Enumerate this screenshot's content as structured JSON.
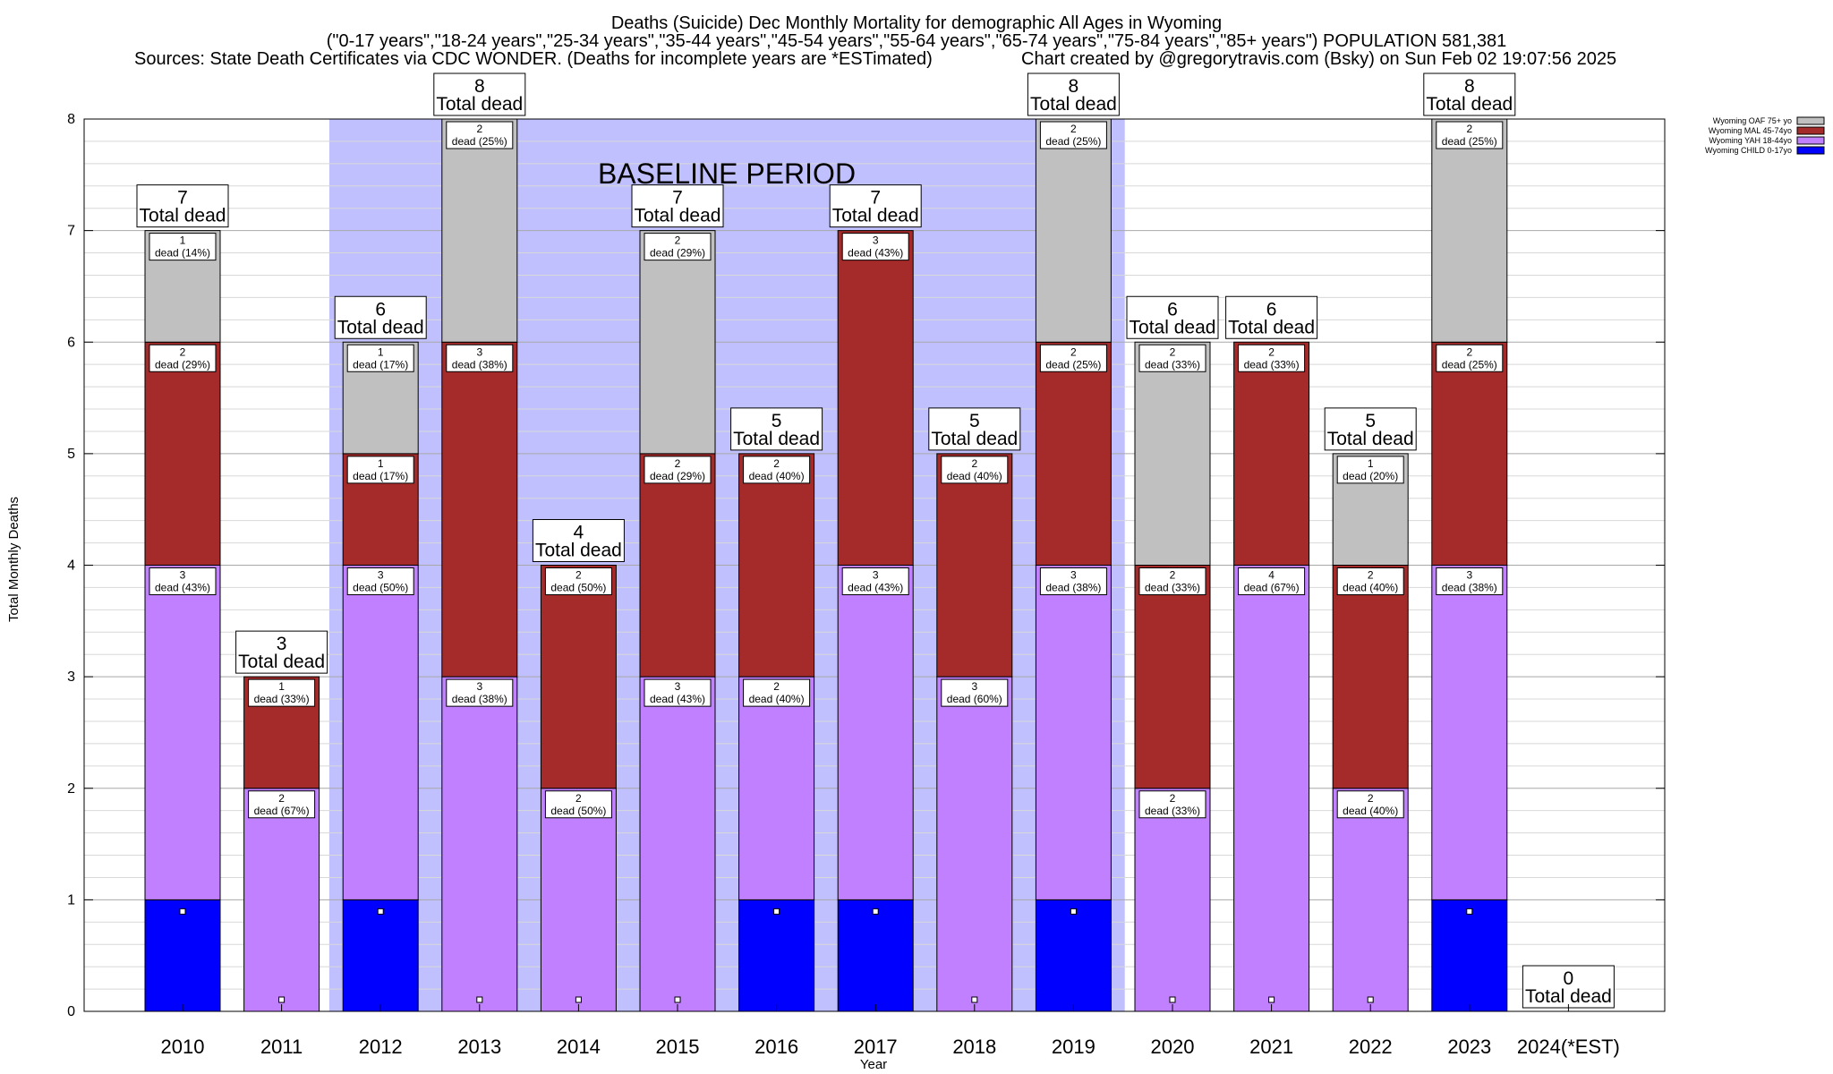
{
  "title": {
    "line1": "Deaths (Suicide) Dec Monthly Mortality for demographic All Ages in Wyoming",
    "line2": "(\"0-17 years\",\"18-24 years\",\"25-34 years\",\"35-44 years\",\"45-54 years\",\"55-64 years\",\"65-74 years\",\"75-84 years\",\"85+ years\") POPULATION 581,381",
    "line3_left": "Sources: State Death Certificates via CDC WONDER. (Deaths for incomplete years are *ESTimated)",
    "line3_right": "Chart created by @gregorytravis.com (Bsky) on Sun Feb 02 19:07:56 2025"
  },
  "baseline_label": "BASELINE PERIOD",
  "total_suffix": "Total dead",
  "seg_word": "dead",
  "chart_data": {
    "type": "bar",
    "stacked": true,
    "categories": [
      "2010",
      "2011",
      "2012",
      "2013",
      "2014",
      "2015",
      "2016",
      "2017",
      "2018",
      "2019",
      "2020",
      "2021",
      "2022",
      "2023",
      "2024(*EST)"
    ],
    "series": [
      {
        "name": "Wyoming CHILD 0-17yo",
        "color": "#0000ff",
        "values": [
          1,
          0,
          1,
          0,
          0,
          0,
          1,
          1,
          0,
          1,
          0,
          0,
          0,
          1,
          0
        ]
      },
      {
        "name": "Wyoming YAH 18-44yo",
        "color": "#c080ff",
        "values": [
          3,
          2,
          3,
          3,
          2,
          3,
          2,
          3,
          3,
          3,
          2,
          4,
          2,
          3,
          0
        ]
      },
      {
        "name": "Wyoming MAL 45-74yo",
        "color": "#a52a2a",
        "values": [
          2,
          1,
          1,
          3,
          2,
          2,
          2,
          3,
          2,
          2,
          2,
          2,
          2,
          2,
          0
        ]
      },
      {
        "name": "Wyoming OAF 75+ yo",
        "color": "#c0c0c0",
        "values": [
          1,
          0,
          1,
          2,
          0,
          2,
          0,
          0,
          0,
          2,
          2,
          0,
          1,
          2,
          0
        ]
      }
    ],
    "segment_labels": [
      [
        "",
        "3|43%",
        "2|29%",
        "1|14%"
      ],
      [
        "",
        "2|67%",
        "1|33%",
        ""
      ],
      [
        "",
        "3|50%",
        "1|17%",
        "1|17%"
      ],
      [
        "",
        "3|38%",
        "3|38%",
        "2|25%"
      ],
      [
        "",
        "2|50%",
        "2|50%",
        ""
      ],
      [
        "",
        "3|43%",
        "2|29%",
        "2|29%"
      ],
      [
        "",
        "2|40%",
        "2|40%",
        ""
      ],
      [
        "",
        "3|43%",
        "3|43%",
        ""
      ],
      [
        "",
        "3|60%",
        "2|40%",
        ""
      ],
      [
        "",
        "3|38%",
        "2|25%",
        "2|25%"
      ],
      [
        "",
        "2|33%",
        "2|33%",
        "2|33%"
      ],
      [
        "",
        "4|67%",
        "2|33%",
        ""
      ],
      [
        "",
        "2|40%",
        "2|40%",
        "1|20%"
      ],
      [
        "",
        "3|38%",
        "2|25%",
        "2|25%"
      ],
      [
        "",
        "",
        "",
        ""
      ]
    ],
    "totals": [
      7,
      3,
      6,
      8,
      4,
      7,
      5,
      7,
      5,
      8,
      6,
      6,
      5,
      8,
      0
    ],
    "baseline_period": [
      "2012",
      "2019"
    ],
    "xlabel": "Year",
    "ylabel": "Total Monthly Deaths",
    "ylim": [
      0,
      8
    ],
    "yticks": [
      0,
      1,
      2,
      3,
      4,
      5,
      6,
      7,
      8
    ],
    "grid": true,
    "legend_position": "top-right",
    "colors": {
      "baseline": "#c0c0ff"
    }
  }
}
